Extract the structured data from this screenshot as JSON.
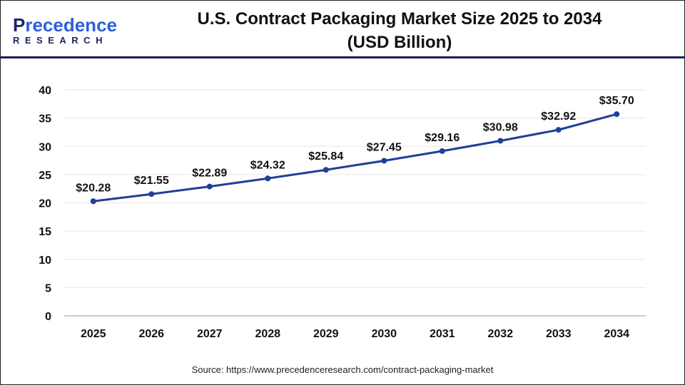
{
  "logo": {
    "line1_a": "P",
    "line1_b": "recedence",
    "line2": "RESEARCH"
  },
  "title_line1": "U.S. Contract Packaging Market Size 2025 to 2034",
  "title_line2": "(USD Billion)",
  "source": "Source: https://www.precedenceresearch.com/contract-packaging-market",
  "chart_data": {
    "type": "line",
    "title": "U.S. Contract Packaging Market Size 2025 to 2034 (USD Billion)",
    "categories": [
      "2025",
      "2026",
      "2027",
      "2028",
      "2029",
      "2030",
      "2031",
      "2032",
      "2033",
      "2034"
    ],
    "values": [
      20.28,
      21.55,
      22.89,
      24.32,
      25.84,
      27.45,
      29.16,
      30.98,
      32.92,
      35.7
    ],
    "data_labels": [
      "$20.28",
      "$21.55",
      "$22.89",
      "$24.32",
      "$25.84",
      "$27.45",
      "$29.16",
      "$30.98",
      "$32.92",
      "$35.70"
    ],
    "yticks": [
      0,
      5,
      10,
      15,
      20,
      25,
      30,
      35,
      40
    ],
    "ylim": [
      0,
      40
    ],
    "grid": true,
    "line_color": "#1f3f99"
  }
}
